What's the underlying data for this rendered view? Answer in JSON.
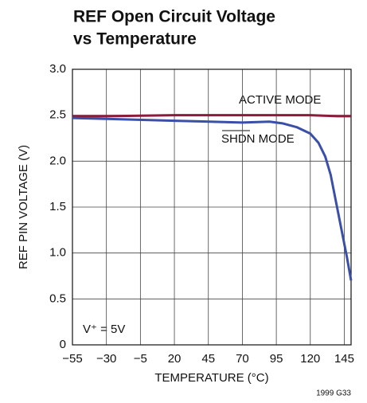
{
  "chart_data": {
    "type": "line",
    "title": [
      "REF Open Circuit Voltage",
      "vs Temperature"
    ],
    "x_label": "TEMPERATURE (°C)",
    "y_label": "REF PIN VOLTAGE (V)",
    "annotations": [
      "ACTIVE MODE",
      "SHDN MODE",
      "V⁺ = 5V"
    ],
    "footnote": "1999 G33",
    "xlim": [
      -55,
      150
    ],
    "ylim": [
      0,
      3
    ],
    "xticks": [
      {
        "value": -55,
        "label": "−55"
      },
      {
        "value": -30,
        "label": "−30"
      },
      {
        "value": -5,
        "label": "−5"
      },
      20,
      45,
      70,
      95,
      120,
      145
    ],
    "yticks": [
      0,
      0.5,
      {
        "value": 1,
        "label": "1.0"
      },
      1.5,
      {
        "value": 2,
        "label": "2.0"
      },
      2.5,
      {
        "value": 3,
        "label": "3.0"
      }
    ],
    "grid": true,
    "series": [
      {
        "name": "ACTIVE MODE",
        "color": "#8c1c3c",
        "x": [
          -55,
          -30,
          20,
          70,
          120,
          140,
          150
        ],
        "values": [
          2.49,
          2.49,
          2.5,
          2.5,
          2.5,
          2.49,
          2.49
        ]
      },
      {
        "name": "SHDN MODE",
        "color": "#3a4fa8",
        "x": [
          -55,
          -30,
          20,
          70,
          90,
          100,
          110,
          120,
          126,
          131,
          135,
          139,
          143,
          147,
          150
        ],
        "values": [
          2.47,
          2.46,
          2.44,
          2.42,
          2.43,
          2.41,
          2.37,
          2.3,
          2.2,
          2.05,
          1.85,
          1.55,
          1.25,
          0.95,
          0.7
        ]
      }
    ]
  }
}
